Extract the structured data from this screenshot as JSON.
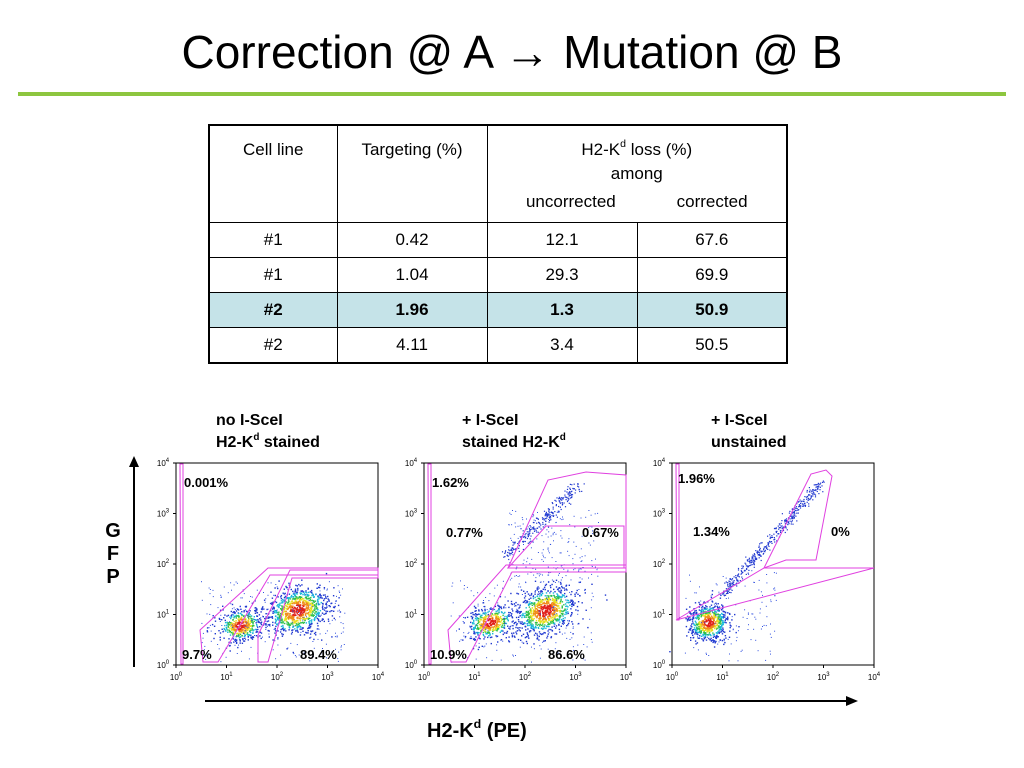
{
  "slide": {
    "title_before": "Correction @ A ",
    "title_arrow": "→",
    "title_after": " Mutation @ B",
    "accent_color": "#8dc63f"
  },
  "table": {
    "headers": {
      "cell_line": "Cell line",
      "targeting": "Targeting (%)",
      "loss_prefix": "H2-K",
      "loss_sup": "d",
      "loss_suffix": " loss (%)",
      "among": "among",
      "uncorrected": "uncorrected",
      "corrected": "corrected"
    },
    "highlight_color": "#c5e3e8",
    "rows": [
      {
        "cell_line": "#1",
        "targeting": "0.42",
        "uncorrected": "12.1",
        "corrected": "67.6"
      },
      {
        "cell_line": "#1",
        "targeting": "1.04",
        "uncorrected": "29.3",
        "corrected": "69.9"
      },
      {
        "cell_line": "#2",
        "targeting": "1.96",
        "uncorrected": "1.3",
        "corrected": "50.9"
      },
      {
        "cell_line": "#2",
        "targeting": "4.11",
        "uncorrected": "3.4",
        "corrected": "50.5"
      }
    ]
  },
  "plots": [
    {
      "label_line1": "no I-SceI",
      "label_line2_prefix": "H2-K",
      "label_line2_sup": "d",
      "label_line2_suffix": " stained",
      "pct_top_left": "0.001%",
      "pct_bottom_left": "9.7%",
      "pct_bottom_right": "89.4%"
    },
    {
      "label_line1": "+ I-SceI",
      "label_line2_prefix": "stained H2-K",
      "label_line2_sup": "d",
      "label_line2_suffix": "",
      "pct_top_left": "1.62%",
      "pct_mid_left": "0.77%",
      "pct_mid_right": "0.67%",
      "pct_bottom_left": "10.9%",
      "pct_bottom_right": "86.6%"
    },
    {
      "label_line1": "+ I-SceI",
      "label_line2_prefix": "unstained",
      "label_line2_sup": "",
      "label_line2_suffix": "",
      "pct_top_left": "1.96%",
      "pct_mid_left": "1.34%",
      "pct_mid_right": "0%"
    }
  ],
  "axes": {
    "tick_base": "10",
    "tick_exponents": [
      "0",
      "1",
      "2",
      "3",
      "4"
    ],
    "y_axis_letters": [
      "G",
      "F",
      "P"
    ],
    "x_axis_prefix": "H2-K",
    "x_axis_sup": "d",
    "x_axis_suffix": " (PE)",
    "gate_color": "#e040e0"
  }
}
